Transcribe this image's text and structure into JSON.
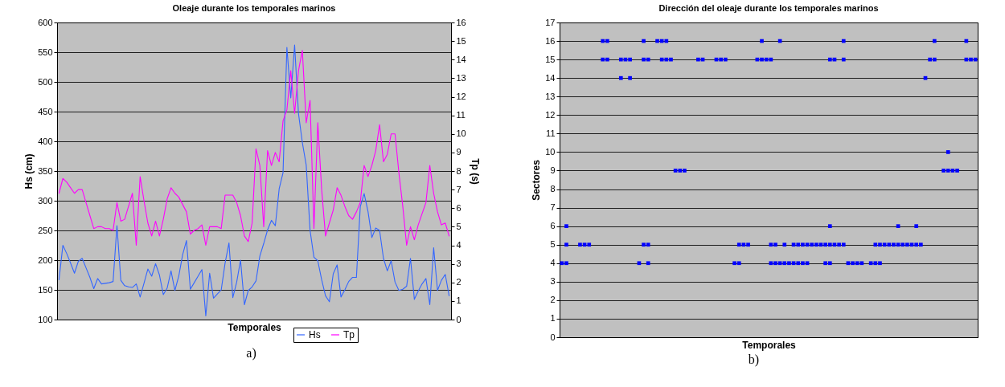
{
  "chart_data": [
    {
      "type": "line",
      "title": "Oleaje durante los temporales marinos",
      "xlabel": "Temporales",
      "ylabel": "Hs (cm)",
      "y2label": "Tp (s)",
      "annotations": [
        "a)"
      ],
      "categories": [
        null,
        null,
        null,
        null,
        null,
        null,
        null,
        null,
        null,
        null,
        null,
        null,
        null,
        null,
        null,
        null,
        null,
        null,
        null,
        null,
        null,
        null,
        null,
        null,
        null,
        null,
        null,
        null,
        null,
        null,
        null,
        null,
        null,
        null,
        null,
        null,
        null,
        null,
        null,
        null,
        null,
        null,
        null,
        null,
        null,
        null,
        null,
        null,
        null,
        null,
        null,
        null,
        null,
        null,
        null,
        null,
        null,
        null,
        null,
        null,
        null,
        null,
        null,
        null,
        null,
        null,
        null,
        null,
        null,
        null,
        null,
        null,
        null,
        null,
        null,
        null,
        null,
        null,
        null,
        null,
        null,
        null,
        null,
        null,
        null,
        null,
        null,
        null,
        null,
        null,
        null,
        null,
        null,
        null,
        null,
        null,
        null,
        null,
        null,
        null,
        null,
        null
      ],
      "ylim": [
        100,
        600
      ],
      "yticks": [
        100,
        150,
        200,
        250,
        300,
        350,
        400,
        450,
        500,
        550,
        600
      ],
      "y2lim": [
        0,
        16
      ],
      "y2ticks": [
        0,
        1,
        2,
        3,
        4,
        5,
        6,
        7,
        8,
        9,
        10,
        11,
        12,
        13,
        14,
        15,
        16
      ],
      "grid": "y",
      "legend": "bottom",
      "tick_labels": "y",
      "series": [
        {
          "name": "Hs",
          "color": "#3366ff",
          "values": [
            167,
            225,
            211,
            195,
            178,
            198,
            203,
            187,
            171,
            152,
            169,
            160,
            161,
            162,
            164,
            258,
            166,
            157,
            155,
            154,
            160,
            138,
            161,
            185,
            173,
            194,
            175,
            142,
            153,
            182,
            149,
            173,
            209,
            233,
            151,
            162,
            173,
            184,
            106,
            178,
            136,
            143,
            150,
            195,
            229,
            137,
            163,
            200,
            125,
            149,
            155,
            165,
            207,
            228,
            251,
            267,
            258,
            320,
            347,
            558,
            473,
            562,
            447,
            398,
            360,
            250,
            205,
            199,
            167,
            140,
            130,
            177,
            192,
            138,
            150,
            164,
            171,
            171,
            290,
            312,
            282,
            238,
            254,
            250,
            203,
            182,
            199,
            163,
            149,
            151,
            156,
            203,
            134,
            148,
            160,
            169,
            125,
            221,
            149,
            166,
            176,
            140
          ]
        },
        {
          "name": "Tp",
          "color": "#ff00ff",
          "axis": "y2",
          "values": [
            6.8,
            7.6,
            7.4,
            7.1,
            6.8,
            7.0,
            7.0,
            6.3,
            5.6,
            4.9,
            5.0,
            5.0,
            4.9,
            4.9,
            4.8,
            6.3,
            5.3,
            5.4,
            6.1,
            6.8,
            4.0,
            7.7,
            6.4,
            5.2,
            4.5,
            5.3,
            4.5,
            5.4,
            6.5,
            7.1,
            6.8,
            6.6,
            6.2,
            5.8,
            4.6,
            4.8,
            4.9,
            5.1,
            4.0,
            5.0,
            5.0,
            5.0,
            4.9,
            6.7,
            6.7,
            6.7,
            6.3,
            5.6,
            4.5,
            4.2,
            5.2,
            9.2,
            8.3,
            5.0,
            9.1,
            8.3,
            9.0,
            8.5,
            10.7,
            11.3,
            13.4,
            11.1,
            13.4,
            14.5,
            10.6,
            11.8,
            4.9,
            10.6,
            7.0,
            4.5,
            5.2,
            5.9,
            7.1,
            6.7,
            6.1,
            5.6,
            5.4,
            5.8,
            6.3,
            8.3,
            7.7,
            8.3,
            9.1,
            10.5,
            8.5,
            8.9,
            10.0,
            10.0,
            7.9,
            6.1,
            4.0,
            5.0,
            4.3,
            5.1,
            5.7,
            6.3,
            8.3,
            6.8,
            5.8,
            5.1,
            5.2,
            4.5
          ]
        }
      ]
    },
    {
      "type": "scatter",
      "title": "Dirección del oleaje durante los temporales marinos",
      "xlabel": "Temporales",
      "ylabel": "Sectores",
      "annotations": [
        "b)"
      ],
      "categories": [
        null,
        null,
        null,
        null,
        null,
        null,
        null,
        null,
        null,
        null,
        null,
        null,
        null,
        null,
        null,
        null,
        null,
        null,
        null,
        null,
        null,
        null,
        null,
        null,
        null,
        null,
        null,
        null,
        null,
        null,
        null,
        null,
        null,
        null,
        null,
        null,
        null,
        null,
        null,
        null,
        null,
        null,
        null,
        null,
        null,
        null,
        null,
        null,
        null,
        null,
        null,
        null,
        null,
        null,
        null,
        null,
        null,
        null,
        null,
        null,
        null,
        null,
        null,
        null,
        null,
        null,
        null,
        null,
        null,
        null,
        null,
        null,
        null,
        null,
        null,
        null,
        null,
        null,
        null,
        null,
        null,
        null,
        null,
        null,
        null,
        null,
        null,
        null,
        null,
        null,
        null,
        null
      ],
      "ylim": [
        0,
        17
      ],
      "yticks": [
        0,
        1,
        2,
        3,
        4,
        5,
        6,
        7,
        8,
        9,
        10,
        11,
        12,
        13,
        14,
        15,
        16,
        17
      ],
      "grid": "y",
      "tick_labels": "y",
      "marker": "square",
      "series": [
        {
          "color": "#0000ff",
          "values": [
            null,
            null,
            null,
            null,
            null,
            null,
            null,
            null,
            null,
            16,
            16,
            null,
            null,
            null,
            null,
            null,
            null,
            null,
            16,
            null,
            null,
            16,
            16,
            16,
            null,
            null,
            null,
            null,
            null,
            null,
            null,
            null,
            null,
            null,
            null,
            null,
            null,
            null,
            null,
            null,
            null,
            null,
            null,
            null,
            16,
            null,
            null,
            null,
            16,
            null,
            null,
            null,
            null,
            null,
            null,
            null,
            null,
            null,
            null,
            null,
            null,
            null,
            16,
            null,
            null,
            null,
            null,
            null,
            null,
            null,
            null,
            null,
            null,
            null,
            null,
            null,
            null,
            null,
            null,
            null,
            null,
            null,
            16,
            null,
            null,
            null,
            null,
            null,
            null,
            16,
            null,
            null
          ]
        },
        {
          "color": "#0000ff",
          "values": [
            null,
            null,
            null,
            null,
            null,
            null,
            null,
            null,
            null,
            15,
            15,
            null,
            null,
            15,
            15,
            15,
            null,
            null,
            15,
            15,
            null,
            null,
            15,
            15,
            15,
            null,
            null,
            null,
            null,
            null,
            15,
            15,
            null,
            null,
            15,
            15,
            15,
            null,
            null,
            null,
            null,
            null,
            null,
            15,
            15,
            15,
            15,
            null,
            null,
            null,
            null,
            null,
            null,
            null,
            null,
            null,
            null,
            null,
            null,
            15,
            15,
            null,
            15,
            null,
            null,
            null,
            null,
            null,
            null,
            null,
            null,
            null,
            null,
            null,
            null,
            null,
            null,
            null,
            null,
            null,
            null,
            15,
            15,
            null,
            null,
            null,
            null,
            null,
            null,
            15,
            15,
            15
          ]
        },
        {
          "color": "#0000ff",
          "values": [
            null,
            null,
            null,
            null,
            null,
            null,
            null,
            null,
            null,
            null,
            null,
            null,
            null,
            14,
            null,
            14,
            null,
            null,
            null,
            null,
            null,
            null,
            null,
            null,
            null,
            null,
            null,
            null,
            null,
            null,
            null,
            null,
            null,
            null,
            null,
            null,
            null,
            null,
            null,
            null,
            null,
            null,
            null,
            null,
            null,
            null,
            null,
            null,
            null,
            null,
            null,
            null,
            null,
            null,
            null,
            null,
            null,
            null,
            null,
            null,
            null,
            null,
            null,
            null,
            null,
            null,
            null,
            null,
            null,
            null,
            null,
            null,
            null,
            null,
            null,
            null,
            null,
            null,
            null,
            null,
            14,
            null,
            null,
            null,
            null,
            null,
            null,
            null,
            null,
            null,
            null,
            null
          ]
        },
        {
          "color": "#0000ff",
          "values": [
            null,
            null,
            null,
            null,
            null,
            null,
            null,
            null,
            null,
            null,
            null,
            null,
            null,
            null,
            null,
            null,
            null,
            null,
            null,
            null,
            null,
            null,
            null,
            null,
            null,
            null,
            null,
            null,
            null,
            null,
            null,
            null,
            null,
            null,
            null,
            null,
            null,
            null,
            null,
            null,
            null,
            null,
            null,
            null,
            null,
            null,
            null,
            null,
            null,
            null,
            null,
            null,
            null,
            null,
            null,
            null,
            null,
            null,
            null,
            null,
            null,
            null,
            null,
            null,
            null,
            null,
            null,
            null,
            null,
            null,
            null,
            null,
            null,
            null,
            null,
            null,
            null,
            null,
            null,
            null,
            null,
            null,
            null,
            null,
            null,
            10,
            null,
            null,
            null,
            null,
            null,
            null
          ]
        },
        {
          "color": "#0000ff",
          "values": [
            null,
            null,
            null,
            null,
            null,
            null,
            null,
            null,
            null,
            null,
            null,
            null,
            null,
            null,
            null,
            null,
            null,
            null,
            null,
            null,
            null,
            null,
            null,
            null,
            null,
            9,
            9,
            9,
            null,
            null,
            null,
            null,
            null,
            null,
            null,
            null,
            null,
            null,
            null,
            null,
            null,
            null,
            null,
            null,
            null,
            null,
            null,
            null,
            null,
            null,
            null,
            null,
            null,
            null,
            null,
            null,
            null,
            null,
            null,
            null,
            null,
            null,
            null,
            null,
            null,
            null,
            null,
            null,
            null,
            null,
            null,
            null,
            null,
            null,
            null,
            null,
            null,
            null,
            null,
            null,
            null,
            null,
            null,
            null,
            9,
            9,
            9,
            9,
            null,
            null,
            null,
            null
          ]
        },
        {
          "color": "#0000ff",
          "values": [
            null,
            6,
            null,
            null,
            null,
            null,
            null,
            null,
            null,
            null,
            null,
            null,
            null,
            null,
            null,
            null,
            null,
            null,
            null,
            null,
            null,
            null,
            null,
            null,
            null,
            null,
            null,
            null,
            null,
            null,
            null,
            null,
            null,
            null,
            null,
            null,
            null,
            null,
            null,
            null,
            null,
            null,
            null,
            null,
            null,
            null,
            null,
            null,
            null,
            null,
            null,
            null,
            null,
            null,
            null,
            null,
            null,
            null,
            null,
            6,
            null,
            null,
            null,
            null,
            null,
            null,
            null,
            null,
            null,
            null,
            null,
            null,
            null,
            null,
            6,
            null,
            null,
            null,
            6,
            null,
            null,
            null,
            null,
            null,
            null,
            null,
            null,
            null,
            null,
            null,
            null,
            null
          ]
        },
        {
          "color": "#0000ff",
          "values": [
            null,
            5,
            null,
            null,
            5,
            5,
            5,
            null,
            null,
            null,
            null,
            null,
            null,
            null,
            null,
            null,
            null,
            null,
            5,
            5,
            null,
            null,
            null,
            null,
            null,
            null,
            null,
            null,
            null,
            null,
            null,
            null,
            null,
            null,
            null,
            null,
            null,
            null,
            null,
            5,
            5,
            5,
            null,
            null,
            null,
            null,
            5,
            5,
            null,
            5,
            null,
            5,
            5,
            5,
            5,
            5,
            5,
            5,
            5,
            5,
            5,
            5,
            5,
            null,
            null,
            null,
            null,
            null,
            null,
            5,
            5,
            5,
            5,
            5,
            5,
            5,
            5,
            5,
            5,
            5,
            null,
            null,
            null,
            null,
            null,
            null,
            null,
            null,
            null,
            null,
            null,
            null
          ]
        },
        {
          "color": "#0000ff",
          "values": [
            4,
            4,
            null,
            null,
            null,
            null,
            null,
            null,
            null,
            null,
            null,
            null,
            null,
            null,
            null,
            null,
            null,
            4,
            null,
            4,
            null,
            null,
            null,
            null,
            null,
            null,
            null,
            null,
            null,
            null,
            null,
            null,
            null,
            null,
            null,
            null,
            null,
            null,
            4,
            4,
            null,
            null,
            null,
            null,
            null,
            null,
            4,
            4,
            4,
            4,
            4,
            4,
            4,
            4,
            4,
            null,
            null,
            null,
            4,
            4,
            null,
            null,
            null,
            4,
            4,
            4,
            4,
            null,
            4,
            4,
            4,
            null,
            null,
            null,
            null,
            null,
            null,
            null,
            null,
            null,
            null,
            null,
            null,
            null,
            null,
            null,
            null,
            null,
            null,
            null,
            null,
            null
          ]
        }
      ]
    }
  ]
}
